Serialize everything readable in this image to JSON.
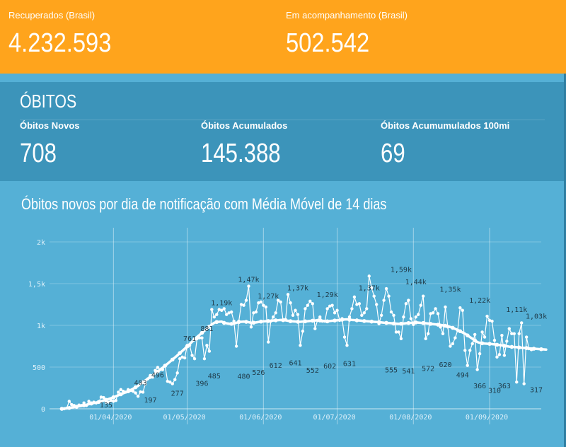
{
  "kpis": {
    "recuperados": {
      "label": "Recuperados (Brasil)",
      "value": "4.232.593"
    },
    "acompanhamento": {
      "label": "Em acompanhamento (Brasil)",
      "value": "502.542"
    }
  },
  "obitos": {
    "title": "ÓBITOS",
    "novos": {
      "label": "Óbitos Novos",
      "value": "708"
    },
    "acumulados": {
      "label": "Óbitos Acumulados",
      "value": "145.388"
    },
    "por100mi": {
      "label": "Óbitos Acumumulados 100mi",
      "value": "69"
    }
  },
  "colors": {
    "orange": "#ffa41c",
    "dark_blue": "#3c94ba",
    "light_blue": "#55b0d6",
    "white": "#ffffff"
  },
  "chart_data": {
    "type": "line",
    "title": "Óbitos novos por dia de notificação com Média Móvel de 14 dias",
    "y_ticks": [
      "0",
      "500",
      "1k",
      "1,5k",
      "2k"
    ],
    "ylim": [
      0,
      2000
    ],
    "x_ticks": [
      "01/04/2020",
      "01/05/2020",
      "01/06/2020",
      "01/07/2020",
      "01/08/2020",
      "01/09/2020"
    ],
    "x_tick_days": [
      21,
      51,
      82,
      112,
      143,
      174
    ],
    "x_range": [
      -5,
      195
    ],
    "grid": true,
    "series": [
      {
        "kind": "daily",
        "values": [
          0,
          1,
          8,
          90,
          50,
          40,
          20,
          45,
          40,
          70,
          40,
          90,
          70,
          80,
          70,
          80,
          140,
          135,
          80,
          80,
          100,
          90,
          100,
          200,
          230,
          210,
          200,
          230,
          220,
          210,
          190,
          150,
          203,
          200,
          300,
          360,
          400,
          380,
          460,
          496,
          470,
          470,
          520,
          330,
          320,
          300,
          350,
          430,
          600,
          620,
          610,
          760,
          760,
          640,
          600,
          840,
          850,
          850,
          600,
          760,
          690,
          1190,
          1100,
          1130,
          1190,
          1180,
          1200,
          1130,
          1150,
          1160,
          1050,
          750,
          1050,
          1250,
          1240,
          1300,
          1470,
          980,
          1150,
          1160,
          1270,
          1280,
          1240,
          1220,
          800,
          1050,
          1100,
          1150,
          1300,
          1280,
          1060,
          1070,
          1370,
          1270,
          1120,
          1180,
          1130,
          760,
          930,
          1200,
          1240,
          1290,
          1260,
          960,
          1060,
          1100,
          1050,
          1050,
          1200,
          1230,
          1240,
          1150,
          1180,
          1060,
          1080,
          860,
          760,
          1100,
          1200,
          1340,
          1250,
          1260,
          1120,
          1150,
          1200,
          1590,
          1450,
          1350,
          1250,
          1020,
          1120,
          1300,
          1440,
          1350,
          1160,
          1120,
          920,
          920,
          840,
          1100,
          1260,
          1300,
          1080,
          1010,
          1100,
          1130,
          1240,
          1350,
          840,
          900,
          1140,
          1150,
          1200,
          1140,
          980,
          900,
          1220,
          980,
          750,
          780,
          850,
          940,
          1210,
          1180,
          700,
          520,
          700,
          780,
          890,
          470,
          660,
          920,
          860,
          1110,
          1060,
          1050,
          820,
          620,
          650,
          880,
          640,
          810,
          960,
          900,
          900,
          320,
          900,
          1030,
          300,
          860,
          720,
          708
        ]
      },
      {
        "kind": "moving_average_14d",
        "values": [
          0,
          3,
          6,
          10,
          16,
          21,
          25,
          30,
          35,
          42,
          48,
          56,
          63,
          70,
          76,
          82,
          90,
          100,
          108,
          117,
          127,
          138,
          150,
          162,
          174,
          186,
          198,
          210,
          225,
          240,
          258,
          275,
          297,
          318,
          340,
          360,
          382,
          404,
          425,
          445,
          470,
          492,
          517,
          540,
          565,
          590,
          615,
          640,
          668,
          693,
          720,
          748,
          775,
          805,
          832,
          860,
          885,
          910,
          935,
          960,
          985,
          1010,
          1030,
          1040,
          1042,
          1045,
          1030,
          1025,
          1020,
          1018,
          1022,
          1030,
          1040,
          1042,
          1044,
          1042,
          1038,
          1030,
          1032,
          1035,
          1040,
          1045,
          1048,
          1050,
          1052,
          1055,
          1058,
          1060,
          1062,
          1065,
          1062,
          1060,
          1055,
          1050,
          1048,
          1045,
          1043,
          1042,
          1045,
          1048,
          1050,
          1053,
          1056,
          1058,
          1060,
          1058,
          1055,
          1050,
          1048,
          1052,
          1055,
          1058,
          1060,
          1065,
          1068,
          1070,
          1072,
          1068,
          1065,
          1063,
          1060,
          1058,
          1055,
          1052,
          1050,
          1048,
          1045,
          1042,
          1040,
          1038,
          1035,
          1032,
          1030,
          1028,
          1025,
          1022,
          1020,
          1018,
          1020,
          1022,
          1025,
          1028,
          1030,
          1032,
          1035,
          1033,
          1030,
          1028,
          1025,
          1022,
          1018,
          1015,
          1012,
          1008,
          1005,
          1000,
          995,
          990,
          980,
          970,
          958,
          945,
          930,
          915,
          900,
          880,
          860,
          840,
          820,
          800,
          790,
          785,
          782,
          780,
          778,
          775,
          772,
          768,
          765,
          760,
          755,
          750,
          745,
          742,
          740,
          738,
          735,
          732,
          730,
          728,
          725,
          722,
          720,
          718,
          716,
          714,
          712,
          710
        ]
      }
    ],
    "data_labels": [
      {
        "day": 18,
        "value": 135,
        "text": "135"
      },
      {
        "day": 32,
        "value": 403,
        "text": "403"
      },
      {
        "day": 39,
        "value": 496,
        "text": "496"
      },
      {
        "day": 36,
        "value": 197,
        "text": "197"
      },
      {
        "day": 52,
        "value": 761,
        "text": "761"
      },
      {
        "day": 47,
        "value": 277,
        "text": "277"
      },
      {
        "day": 59,
        "value": 881,
        "text": "881"
      },
      {
        "day": 57,
        "value": 396,
        "text": "396"
      },
      {
        "day": 65,
        "value": 1190,
        "text": "1,19k"
      },
      {
        "day": 62,
        "value": 485,
        "text": "485"
      },
      {
        "day": 76,
        "value": 1470,
        "text": "1,47k"
      },
      {
        "day": 74,
        "value": 480,
        "text": "480"
      },
      {
        "day": 80,
        "value": 526,
        "text": "526"
      },
      {
        "day": 84,
        "value": 1270,
        "text": "1,27k"
      },
      {
        "day": 87,
        "value": 612,
        "text": "612"
      },
      {
        "day": 96,
        "value": 1370,
        "text": "1,37k"
      },
      {
        "day": 95,
        "value": 641,
        "text": "641"
      },
      {
        "day": 102,
        "value": 552,
        "text": "552"
      },
      {
        "day": 108,
        "value": 1290,
        "text": "1,29k"
      },
      {
        "day": 109,
        "value": 602,
        "text": "602"
      },
      {
        "day": 117,
        "value": 631,
        "text": "631"
      },
      {
        "day": 125,
        "value": 1370,
        "text": "1,37k"
      },
      {
        "day": 134,
        "value": 555,
        "text": "555"
      },
      {
        "day": 138,
        "value": 1590,
        "text": "1,59k"
      },
      {
        "day": 141,
        "value": 541,
        "text": "541"
      },
      {
        "day": 144,
        "value": 1440,
        "text": "1,44k"
      },
      {
        "day": 149,
        "value": 572,
        "text": "572"
      },
      {
        "day": 158,
        "value": 1350,
        "text": "1,35k"
      },
      {
        "day": 156,
        "value": 620,
        "text": "620"
      },
      {
        "day": 163,
        "value": 494,
        "text": "494"
      },
      {
        "day": 170,
        "value": 1220,
        "text": "1,22k"
      },
      {
        "day": 170,
        "value": 366,
        "text": "366"
      },
      {
        "day": 176,
        "value": 310,
        "text": "310"
      },
      {
        "day": 185,
        "value": 1110,
        "text": "1,11k"
      },
      {
        "day": 180,
        "value": 363,
        "text": "363"
      },
      {
        "day": 196,
        "value": 1030,
        "text": "1,03k"
      },
      {
        "day": 196,
        "value": 317,
        "text": "317"
      }
    ]
  }
}
